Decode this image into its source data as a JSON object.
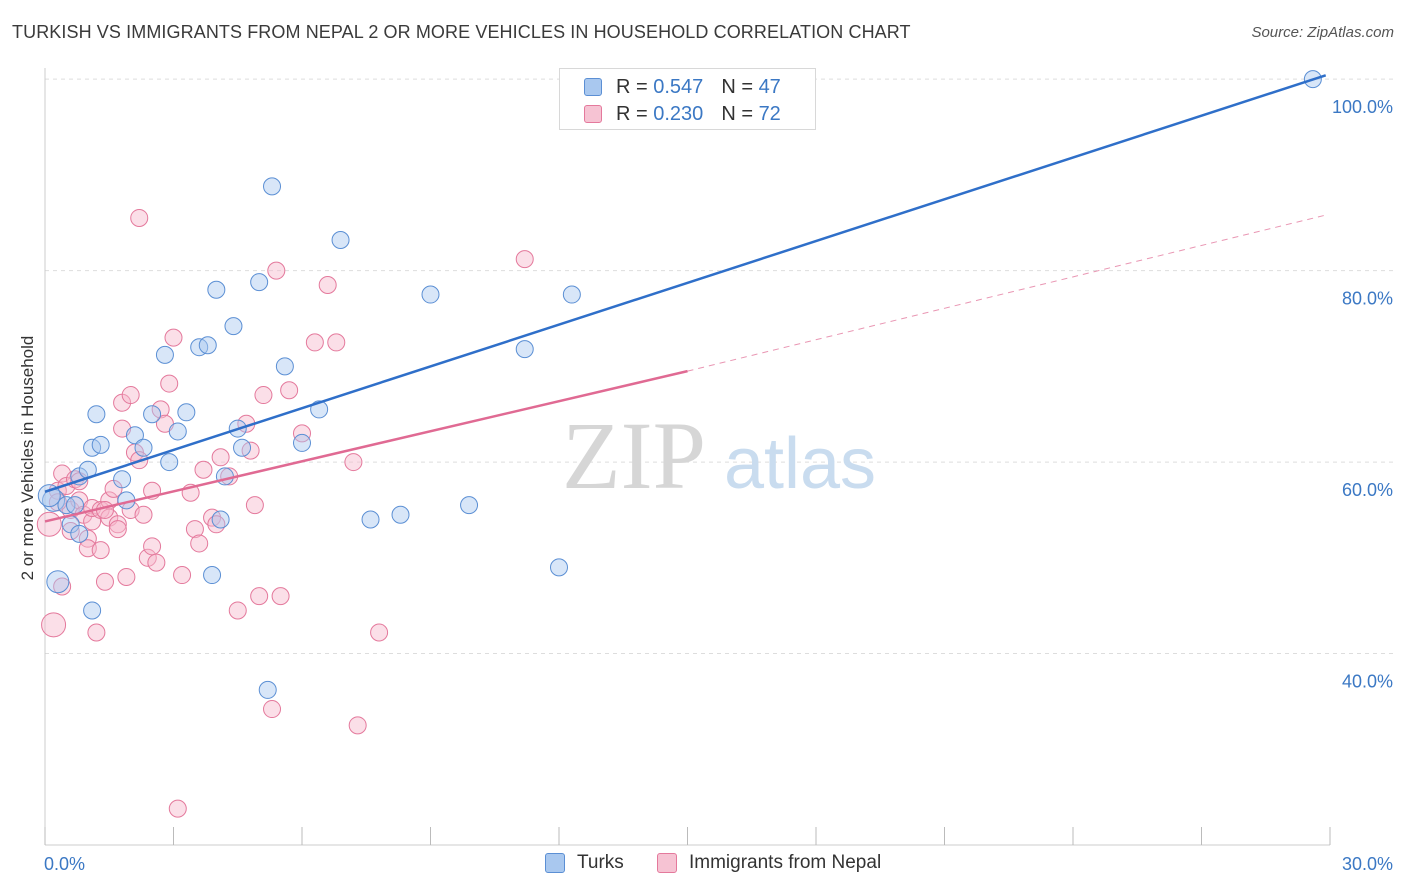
{
  "title": "TURKISH VS IMMIGRANTS FROM NEPAL 2 OR MORE VEHICLES IN HOUSEHOLD CORRELATION CHART",
  "source": "Source: ZipAtlas.com",
  "watermark": {
    "zip": "ZIP",
    "atlas": "atlas"
  },
  "legend_box": {
    "rows": [
      {
        "r_label": "R =",
        "r_value": "0.547",
        "n_label": "N =",
        "n_value": "47"
      },
      {
        "r_label": "R =",
        "r_value": "0.230",
        "n_label": "N =",
        "n_value": "72"
      }
    ]
  },
  "bottom_legend": {
    "turks": "Turks",
    "nepal": "Immigrants from Nepal"
  },
  "colors": {
    "turks_fill": "#a9c8ef",
    "turks_stroke": "#5b8fd4",
    "turks_line": "#2f6fc9",
    "nepal_fill": "#f6b9cc",
    "nepal_stroke": "#e4799c",
    "nepal_line": "#e06a93",
    "tick_label": "#3b78c4",
    "grid": "#dddddd"
  },
  "chart_data": {
    "type": "scatter",
    "title": "TURKISH VS IMMIGRANTS FROM NEPAL 2 OR MORE VEHICLES IN HOUSEHOLD CORRELATION CHART",
    "xlabel": "",
    "ylabel": "2 or more Vehicles in Household",
    "xlim": [
      0,
      30
    ],
    "ylim": [
      20,
      102
    ],
    "x_tick_labels": [
      "0.0%",
      "30.0%"
    ],
    "y_ticks": [
      40,
      60,
      80,
      100
    ],
    "y_tick_labels": [
      "40.0%",
      "60.0%",
      "80.0%",
      "100.0%"
    ],
    "grid": true,
    "legend_position": "top-center",
    "series": [
      {
        "name": "Turks",
        "r": 0.547,
        "n": 47,
        "trend": {
          "x": [
            0,
            29.9
          ],
          "y": [
            56.9,
            100.4
          ]
        },
        "points": [
          [
            0.2,
            56.0
          ],
          [
            0.3,
            47.5
          ],
          [
            0.5,
            55.5
          ],
          [
            0.6,
            53.5
          ],
          [
            0.7,
            55.5
          ],
          [
            0.8,
            52.5
          ],
          [
            0.8,
            58.5
          ],
          [
            1.0,
            59.2
          ],
          [
            1.1,
            44.5
          ],
          [
            1.1,
            61.5
          ],
          [
            1.2,
            65.0
          ],
          [
            1.3,
            61.8
          ],
          [
            1.8,
            58.2
          ],
          [
            1.9,
            56.0
          ],
          [
            2.1,
            62.8
          ],
          [
            2.3,
            61.5
          ],
          [
            2.5,
            65.0
          ],
          [
            2.8,
            71.2
          ],
          [
            2.9,
            60.0
          ],
          [
            3.1,
            63.2
          ],
          [
            3.3,
            65.2
          ],
          [
            3.6,
            72.0
          ],
          [
            3.8,
            72.2
          ],
          [
            3.9,
            48.2
          ],
          [
            4.1,
            54.0
          ],
          [
            4.0,
            78.0
          ],
          [
            4.2,
            58.5
          ],
          [
            4.4,
            74.2
          ],
          [
            4.5,
            63.5
          ],
          [
            4.6,
            61.5
          ],
          [
            5.0,
            78.8
          ],
          [
            5.2,
            36.2
          ],
          [
            5.3,
            88.8
          ],
          [
            5.6,
            70.0
          ],
          [
            6.0,
            62.0
          ],
          [
            6.4,
            65.5
          ],
          [
            6.9,
            83.2
          ],
          [
            7.6,
            54.0
          ],
          [
            8.3,
            54.5
          ],
          [
            9.0,
            77.5
          ],
          [
            9.9,
            55.5
          ],
          [
            11.2,
            71.8
          ],
          [
            12.0,
            49.0
          ],
          [
            12.3,
            77.5
          ],
          [
            12.5,
            100.0
          ],
          [
            29.6,
            100.0
          ],
          [
            0.1,
            56.5
          ]
        ]
      },
      {
        "name": "Immigrants from Nepal",
        "r": 0.23,
        "n": 72,
        "trend": {
          "x": [
            0,
            15
          ],
          "y": [
            53.8,
            69.5
          ]
        },
        "trend_extension": {
          "x": [
            15,
            29.9
          ],
          "y": [
            69.5,
            85.8
          ]
        },
        "points": [
          [
            0.1,
            53.5
          ],
          [
            0.2,
            43.0
          ],
          [
            0.3,
            57.0
          ],
          [
            0.4,
            58.8
          ],
          [
            0.5,
            57.5
          ],
          [
            0.6,
            55.0
          ],
          [
            0.7,
            58.2
          ],
          [
            0.8,
            56.0
          ],
          [
            0.9,
            54.5
          ],
          [
            1.0,
            52.0
          ],
          [
            1.0,
            51.0
          ],
          [
            1.1,
            53.8
          ],
          [
            1.1,
            55.2
          ],
          [
            1.2,
            42.2
          ],
          [
            1.3,
            50.8
          ],
          [
            1.3,
            55.0
          ],
          [
            1.4,
            47.5
          ],
          [
            1.5,
            54.2
          ],
          [
            1.5,
            56.0
          ],
          [
            1.6,
            57.2
          ],
          [
            1.7,
            53.5
          ],
          [
            1.7,
            53.0
          ],
          [
            1.8,
            66.2
          ],
          [
            1.8,
            63.5
          ],
          [
            1.9,
            48.0
          ],
          [
            2.0,
            67.0
          ],
          [
            2.0,
            55.0
          ],
          [
            2.1,
            61.0
          ],
          [
            2.2,
            85.5
          ],
          [
            2.3,
            54.5
          ],
          [
            2.4,
            50.0
          ],
          [
            2.5,
            51.2
          ],
          [
            2.5,
            57.0
          ],
          [
            2.6,
            49.5
          ],
          [
            2.7,
            65.5
          ],
          [
            2.8,
            64.0
          ],
          [
            2.9,
            68.2
          ],
          [
            3.0,
            73.0
          ],
          [
            3.1,
            23.8
          ],
          [
            3.2,
            48.2
          ],
          [
            3.4,
            56.8
          ],
          [
            3.5,
            53.0
          ],
          [
            3.7,
            59.2
          ],
          [
            3.9,
            54.2
          ],
          [
            4.0,
            53.5
          ],
          [
            4.1,
            60.5
          ],
          [
            4.3,
            58.5
          ],
          [
            4.5,
            44.5
          ],
          [
            4.7,
            64.0
          ],
          [
            4.8,
            61.2
          ],
          [
            4.9,
            55.5
          ],
          [
            5.0,
            46.0
          ],
          [
            5.1,
            67.0
          ],
          [
            5.3,
            34.2
          ],
          [
            5.4,
            80.0
          ],
          [
            5.5,
            46.0
          ],
          [
            5.7,
            67.5
          ],
          [
            6.0,
            63.0
          ],
          [
            6.3,
            72.5
          ],
          [
            6.6,
            78.5
          ],
          [
            6.8,
            72.5
          ],
          [
            7.2,
            60.0
          ],
          [
            7.3,
            32.5
          ],
          [
            7.8,
            42.2
          ],
          [
            11.2,
            81.2
          ],
          [
            0.4,
            47.0
          ],
          [
            0.6,
            52.8
          ],
          [
            0.8,
            58.0
          ],
          [
            1.4,
            55.0
          ],
          [
            2.2,
            60.2
          ],
          [
            3.6,
            51.5
          ],
          [
            0.3,
            55.8
          ]
        ]
      }
    ]
  }
}
